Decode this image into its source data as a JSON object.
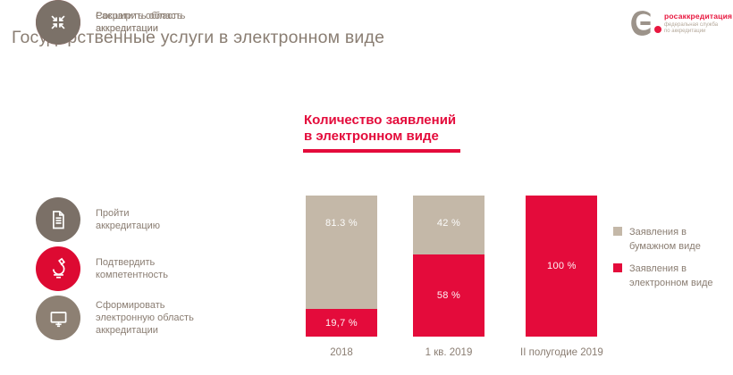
{
  "slide": {
    "title": "Государственные услуги в электронном виде"
  },
  "logo": {
    "brand": "росаккредитация",
    "subtitle": "федеральная служба\nпо аккредитации",
    "mark_color": "#9c938a",
    "dot_color": "#e8173f",
    "brand_color": "#e8173f"
  },
  "services": {
    "items": [
      {
        "icon": "document-icon",
        "label": "Пройти\nаккредитацию",
        "color": "#7b7067"
      },
      {
        "icon": "microscope-icon",
        "label": "Подтвердить\nкомпетентность",
        "color": "#dd0a32"
      },
      {
        "icon": "monitor-icon",
        "label": "Сформировать\nэлектронную область\nаккредитации",
        "color": "#8d8073"
      },
      {
        "icon": "expand-arrows-icon",
        "label": "Расширить область\nаккредитации",
        "color": "#ea5260"
      },
      {
        "icon": "collapse-arrows-icon",
        "label": "Сократить область\nаккредитации",
        "color": "#7b7168"
      }
    ]
  },
  "chart": {
    "title": "Количество заявлений\nв электронном виде"
  },
  "chart_data": {
    "type": "bar",
    "stacked": true,
    "title": "Количество заявлений в электронном виде",
    "categories": [
      "2018",
      "1 кв. 2019",
      "II полугодие 2019"
    ],
    "series": [
      {
        "name": "Заявления в бумажном виде",
        "legend_label": "Заявления в\nбумажном виде",
        "color": "#c4b8a8",
        "values": [
          81.3,
          42,
          0
        ],
        "labels": [
          "81.3 %",
          "42 %",
          null
        ]
      },
      {
        "name": "Заявления в электронном виде",
        "legend_label": "Заявления в\nэлектронном виде",
        "color": "#e40b3b",
        "values": [
          19.7,
          58,
          100
        ],
        "labels": [
          "19,7 %",
          "58 %",
          "100 %"
        ]
      }
    ],
    "unit": "%",
    "ylim": [
      0,
      100
    ],
    "grid": false,
    "legend_position": "right"
  },
  "colors": {
    "accent_red": "#e40b3b",
    "bar_tan": "#c4b8a8",
    "text_brown": "#8a7e73"
  }
}
